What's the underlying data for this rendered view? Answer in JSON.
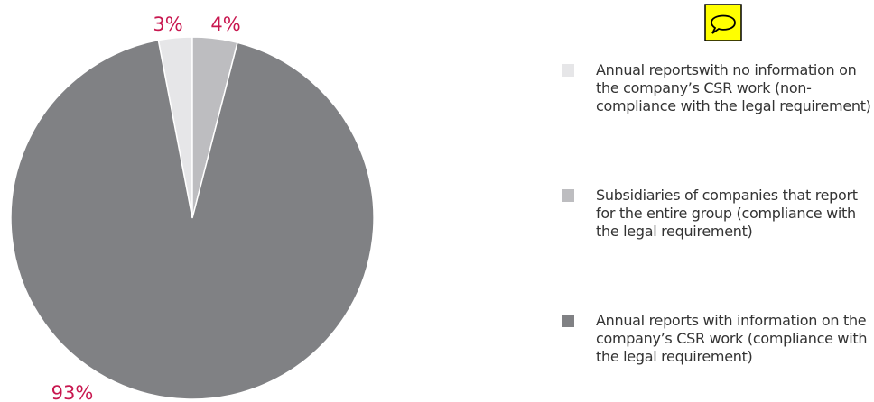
{
  "chart_data": {
    "type": "pie",
    "series": [
      {
        "name": "Annual reportswith no information on the company’s CSR work (non-compliance with the legal requirement)",
        "color": "#e6e6e8",
        "values": [
          3
        ],
        "value_labels": [
          "3%"
        ]
      },
      {
        "name": "Subsidiaries of companies that report for the entire group (compliance with the legal requirement)",
        "color": "#bdbdc0",
        "values": [
          4
        ],
        "value_labels": [
          "4%"
        ]
      },
      {
        "name": "Annual reports with information on the company’s CSR work (compliance with the legal requirement)",
        "color": "#808184",
        "values": [
          93
        ],
        "value_labels": [
          "93%"
        ]
      }
    ],
    "label_color": "#c8174f",
    "legend": "right"
  }
}
